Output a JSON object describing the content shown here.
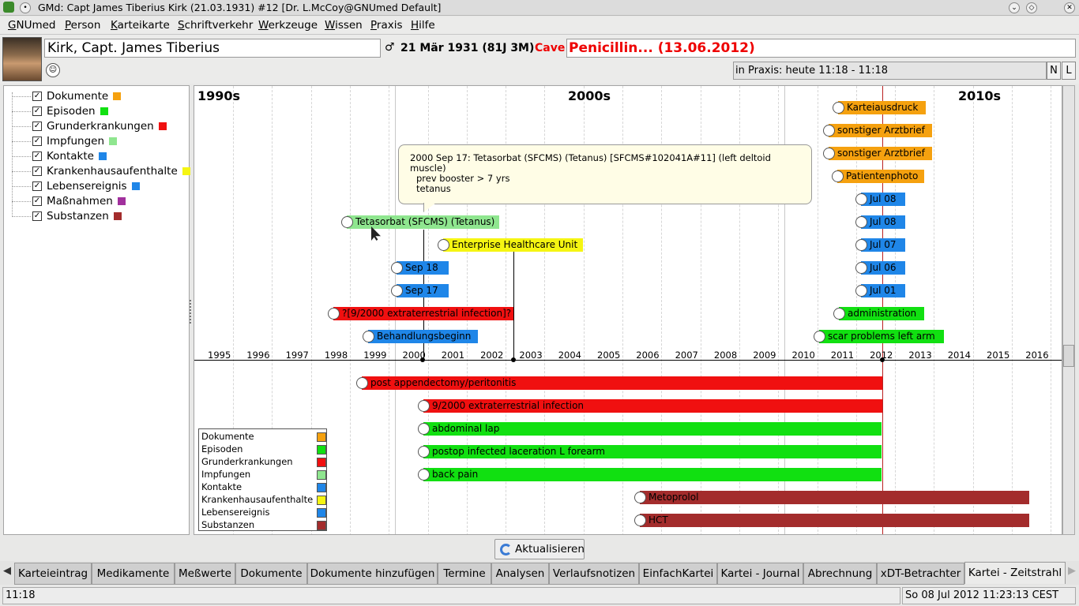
{
  "window": {
    "title": "GMd: Capt James Tiberius Kirk (21.03.1931) #12 [Dr. L.McCoy@GNUmed Default]"
  },
  "menu": [
    "GNUmed",
    "Person",
    "Karteikarte",
    "Schriftverkehr",
    "Werkzeuge",
    "Wissen",
    "Praxis",
    "Hilfe"
  ],
  "patient": {
    "name": "Kirk, Capt. James Tiberius",
    "gender_symbol": "♂",
    "dob": "21 Mär 1931 (81J 3M)",
    "cave_label": "Cave",
    "cave_value": "Penicillin... (13.06.2012)",
    "in_praxis": "in Praxis: heute 11:18 - 11:18",
    "btn_n": "N",
    "btn_l": "L"
  },
  "tree": {
    "items": [
      {
        "label": "Dokumente",
        "color": "#f5a10f"
      },
      {
        "label": "Episoden",
        "color": "#11e011"
      },
      {
        "label": "Grunderkrankungen",
        "color": "#f01010"
      },
      {
        "label": "Impfungen",
        "color": "#8fe68f"
      },
      {
        "label": "Kontakte",
        "color": "#1f86e8"
      },
      {
        "label": "Krankenhausaufenthalte",
        "color": "#f5f512"
      },
      {
        "label": "Lebensereignis",
        "color": "#1f86e8"
      },
      {
        "label": "Maßnahmen",
        "color": "#a1309d"
      },
      {
        "label": "Substanzen",
        "color": "#a32c2c"
      }
    ]
  },
  "timeline": {
    "decades": [
      "1990s",
      "2000s",
      "2010s"
    ],
    "years": [
      "1995",
      "1996",
      "1997",
      "1998",
      "1999",
      "2000",
      "2001",
      "2002",
      "2003",
      "2004",
      "2005",
      "2006",
      "2007",
      "2008",
      "2009",
      "2010",
      "2011",
      "2012",
      "2013",
      "2014",
      "2015",
      "2016"
    ],
    "tooltip": {
      "line1": "2000 Sep 17: Tetasorbat (SFCMS) (Tetanus) [SFCMS#102041A#11] (left deltoid muscle)",
      "line2": "prev booster > 7 yrs",
      "line3": "tetanus"
    },
    "events_top": [
      {
        "label": "Karteiausdruck",
        "color": "#f5a10f"
      },
      {
        "label": "sonstiger Arztbrief",
        "color": "#f5a10f"
      },
      {
        "label": "sonstiger Arztbrief",
        "color": "#f5a10f"
      },
      {
        "label": "Patientenphoto",
        "color": "#f5a10f"
      },
      {
        "label": "Jul 08",
        "color": "#1f86e8"
      },
      {
        "label": "Jul 08",
        "color": "#1f86e8"
      },
      {
        "label": "Jul 07",
        "color": "#1f86e8"
      },
      {
        "label": "Jul 06",
        "color": "#1f86e8"
      },
      {
        "label": "Jul 01",
        "color": "#1f86e8"
      },
      {
        "label": "administration",
        "color": "#11e011"
      },
      {
        "label": "scar problems left arm",
        "color": "#11e011"
      },
      {
        "label": "Tetasorbat (SFCMS) (Tetanus)",
        "color": "#8fe68f"
      },
      {
        "label": "Enterprise Healthcare Unit",
        "color": "#f5f512"
      },
      {
        "label": "Sep 18",
        "color": "#1f86e8"
      },
      {
        "label": "Sep 17",
        "color": "#1f86e8"
      },
      {
        "label": "?[9/2000 extraterrestrial infection]?",
        "color": "#f01010"
      },
      {
        "label": "Behandlungsbeginn",
        "color": "#1f86e8"
      }
    ],
    "events_bottom": [
      {
        "label": "post appendectomy/peritonitis",
        "color": "#f01010"
      },
      {
        "label": "9/2000 extraterrestrial infection",
        "color": "#f01010"
      },
      {
        "label": "abdominal lap",
        "color": "#11e011"
      },
      {
        "label": "postop infected laceration L forearm",
        "color": "#11e011"
      },
      {
        "label": "back pain",
        "color": "#11e011"
      },
      {
        "label": "Metoprolol",
        "color": "#a32c2c"
      },
      {
        "label": "HCT",
        "color": "#a32c2c"
      }
    ],
    "legend": [
      {
        "label": "Dokumente",
        "color": "#f5a10f"
      },
      {
        "label": "Episoden",
        "color": "#11e011"
      },
      {
        "label": "Grunderkrankungen",
        "color": "#f01010"
      },
      {
        "label": "Impfungen",
        "color": "#8fe68f"
      },
      {
        "label": "Kontakte",
        "color": "#1f86e8"
      },
      {
        "label": "Krankenhausaufenthalte",
        "color": "#f5f512"
      },
      {
        "label": "Lebensereignis",
        "color": "#1f86e8"
      },
      {
        "label": "Substanzen",
        "color": "#a32c2c"
      }
    ]
  },
  "aktualisieren": "Aktualisieren",
  "tabs": [
    "Karteieintrag",
    "Medikamente",
    "Meßwerte",
    "Dokumente",
    "Dokumente hinzufügen",
    "Termine",
    "Analysen",
    "Verlaufsnotizen",
    "EinfachKartei",
    "Kartei - Journal",
    "Abrechnung",
    "xDT-Betrachter",
    "Kartei - Zeitstrahl"
  ],
  "status": {
    "left": "11:18",
    "right": "So 08 Jul 2012 11:23:13 CEST"
  }
}
